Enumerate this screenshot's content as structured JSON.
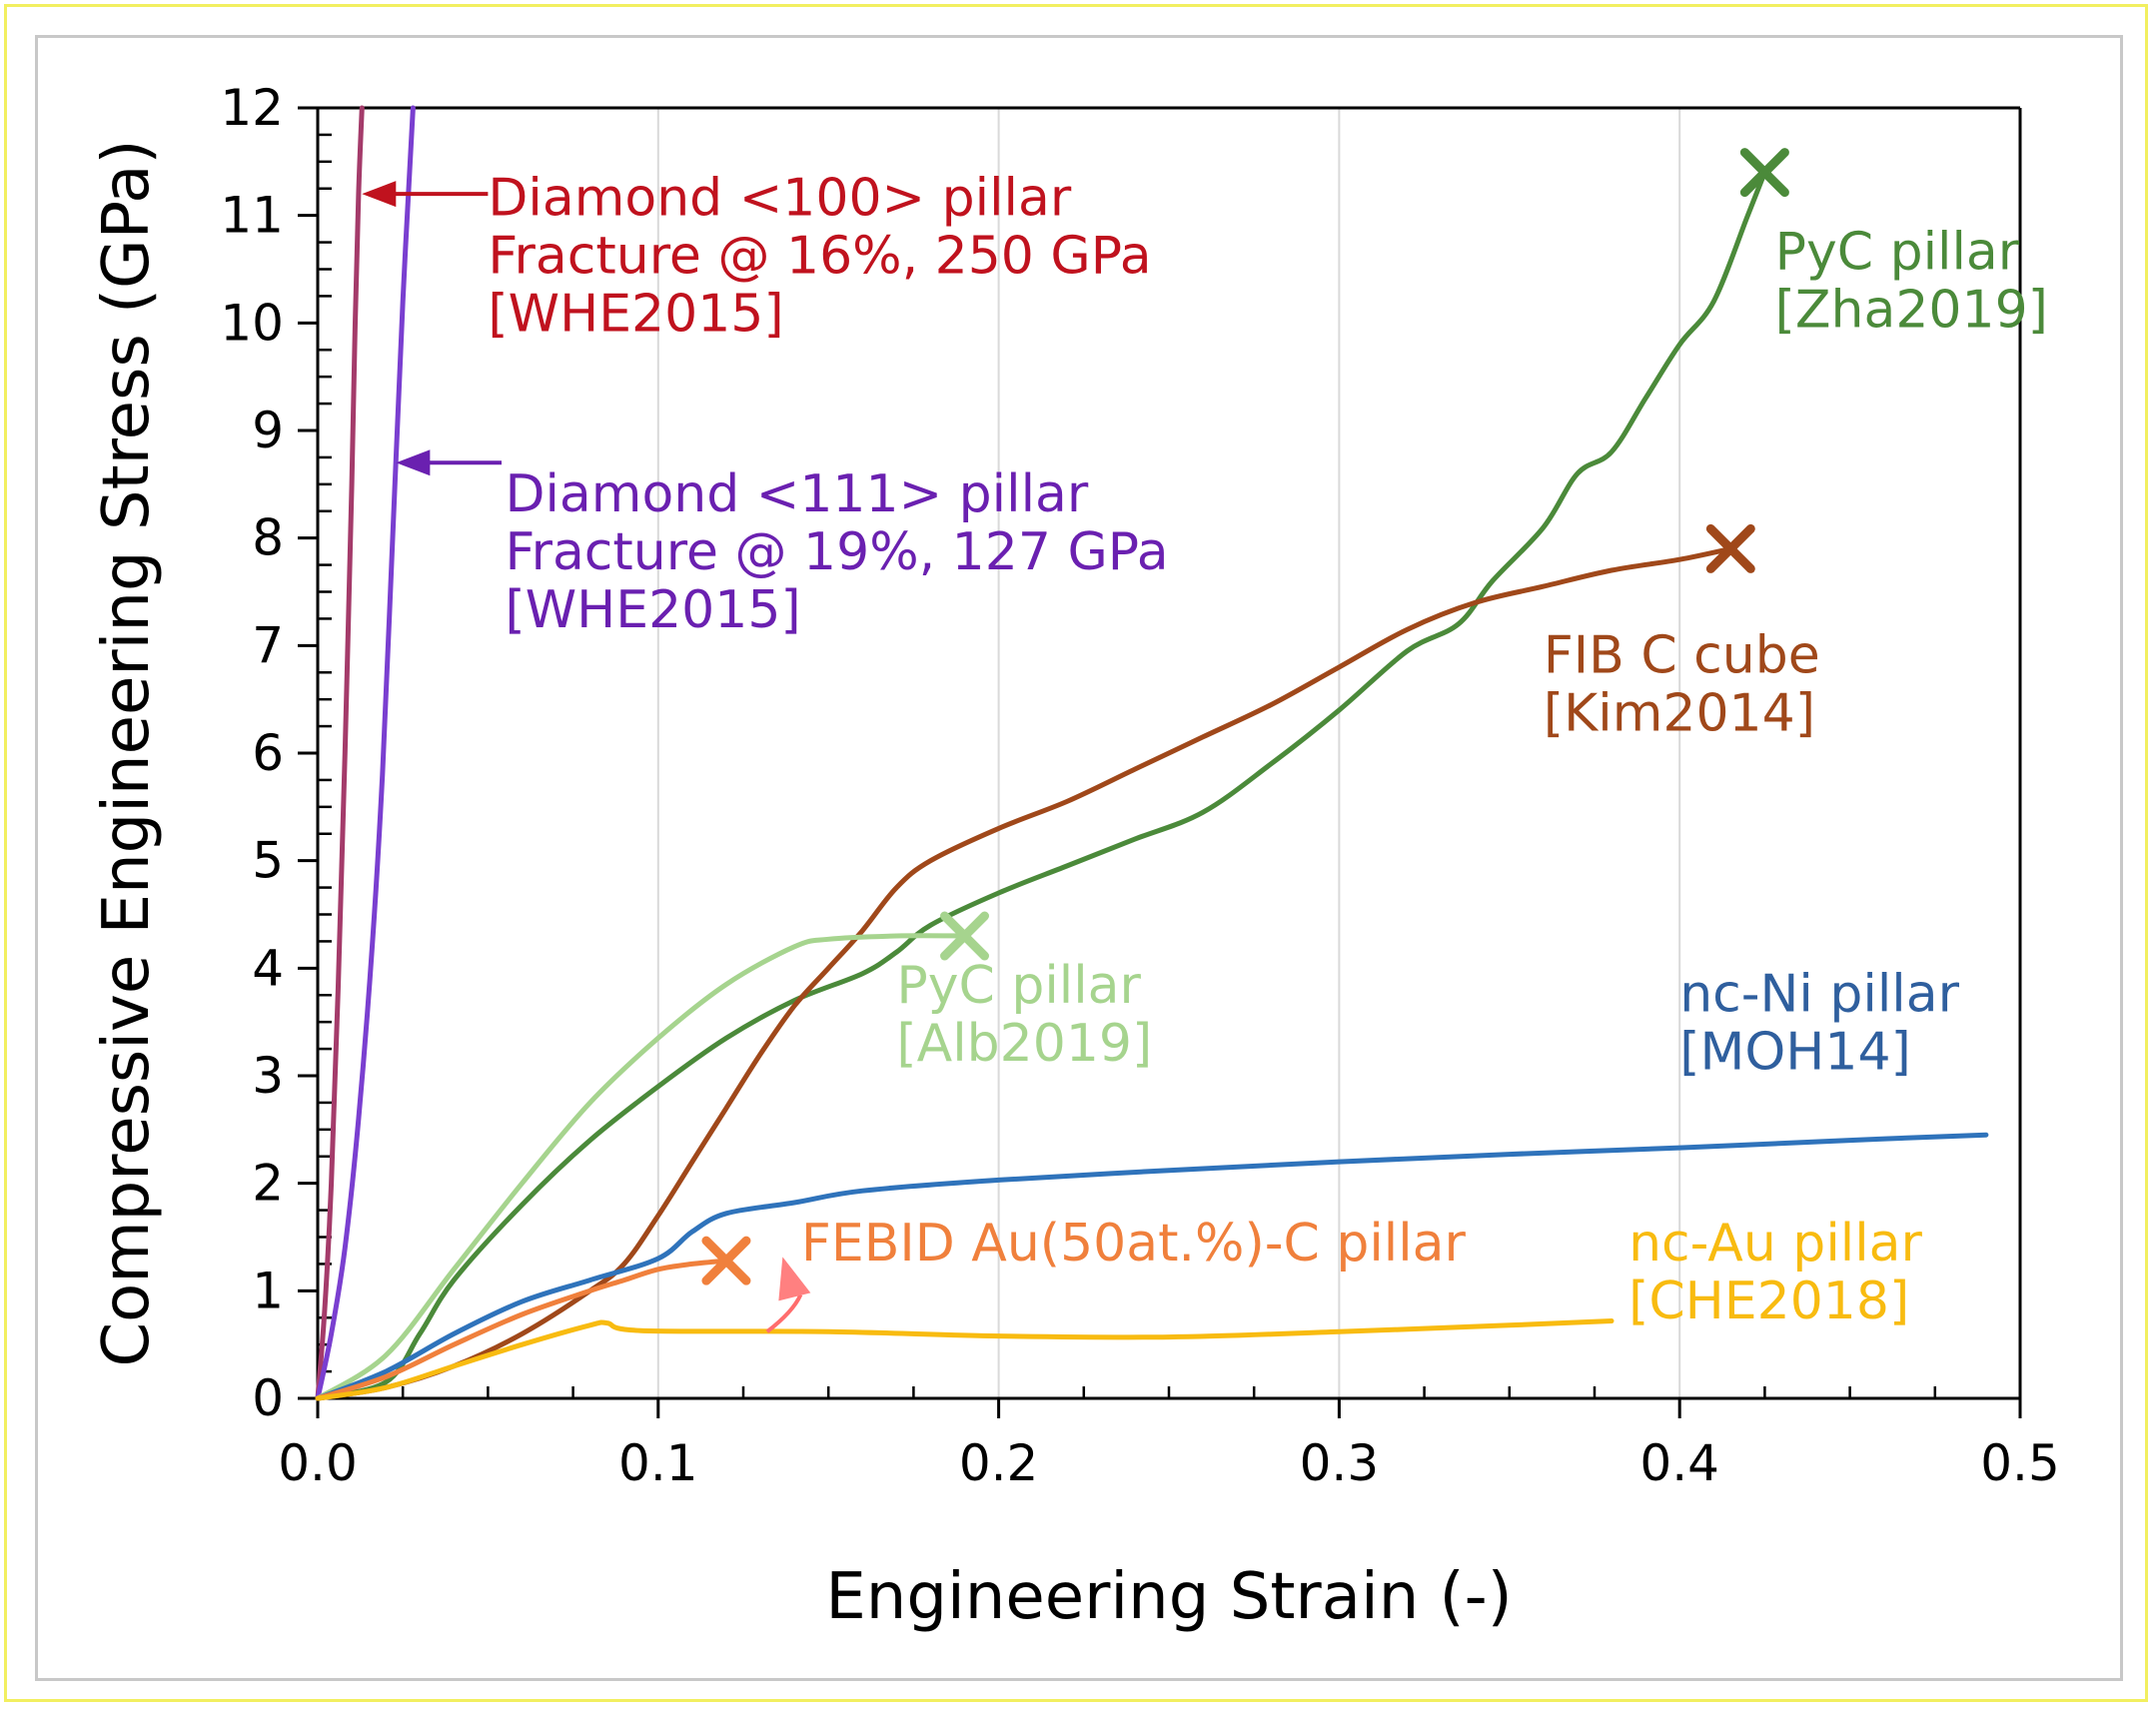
{
  "chart_data": {
    "type": "line",
    "title": "",
    "xlabel": "Engineering Strain (-)",
    "ylabel": "Compressive Engineering Stress (GPa)",
    "xlim": [
      0,
      0.5
    ],
    "ylim": [
      0,
      12
    ],
    "xticks": [
      0.0,
      0.1,
      0.2,
      0.3,
      0.4,
      0.5
    ],
    "xtick_labels": [
      "0.0",
      "0.1",
      "0.2",
      "0.3",
      "0.4",
      "0.5"
    ],
    "yticks": [
      0,
      1,
      2,
      3,
      4,
      5,
      6,
      7,
      8,
      9,
      10,
      11,
      12
    ],
    "ytick_labels": [
      "0",
      "1",
      "2",
      "3",
      "4",
      "5",
      "6",
      "7",
      "8",
      "9",
      "10",
      "11",
      "12"
    ],
    "grid": "vertical",
    "series": [
      {
        "name": "Diamond <100> pillar",
        "color": "#a43b6a",
        "points": [
          [
            0,
            0
          ],
          [
            0.002,
            0.8
          ],
          [
            0.004,
            2
          ],
          [
            0.006,
            3.8
          ],
          [
            0.008,
            6
          ],
          [
            0.01,
            8.5
          ],
          [
            0.011,
            10
          ],
          [
            0.012,
            11.2
          ],
          [
            0.013,
            12
          ]
        ]
      },
      {
        "name": "Diamond <111> pillar",
        "color": "#7a3fd0",
        "points": [
          [
            0,
            0
          ],
          [
            0.004,
            0.6
          ],
          [
            0.008,
            1.4
          ],
          [
            0.012,
            2.6
          ],
          [
            0.016,
            4.2
          ],
          [
            0.019,
            5.8
          ],
          [
            0.022,
            8
          ],
          [
            0.025,
            10.2
          ],
          [
            0.028,
            12
          ]
        ]
      },
      {
        "name": "PyC pillar [Zha2019]",
        "color": "#4b8a3a",
        "points": [
          [
            0,
            0
          ],
          [
            0.02,
            0.15
          ],
          [
            0.03,
            0.6
          ],
          [
            0.04,
            1.1
          ],
          [
            0.06,
            1.8
          ],
          [
            0.08,
            2.4
          ],
          [
            0.1,
            2.9
          ],
          [
            0.12,
            3.35
          ],
          [
            0.14,
            3.7
          ],
          [
            0.16,
            3.95
          ],
          [
            0.17,
            4.15
          ],
          [
            0.18,
            4.4
          ],
          [
            0.2,
            4.7
          ],
          [
            0.22,
            4.95
          ],
          [
            0.24,
            5.2
          ],
          [
            0.26,
            5.45
          ],
          [
            0.28,
            5.9
          ],
          [
            0.3,
            6.4
          ],
          [
            0.32,
            6.95
          ],
          [
            0.335,
            7.2
          ],
          [
            0.345,
            7.6
          ],
          [
            0.36,
            8.1
          ],
          [
            0.37,
            8.6
          ],
          [
            0.38,
            8.8
          ],
          [
            0.39,
            9.3
          ],
          [
            0.4,
            9.8
          ],
          [
            0.41,
            10.2
          ],
          [
            0.42,
            11.0
          ],
          [
            0.425,
            11.4
          ]
        ]
      },
      {
        "name": "FIB C cube [Kim2014]",
        "color": "#a0481a",
        "points": [
          [
            0,
            0
          ],
          [
            0.02,
            0.1
          ],
          [
            0.04,
            0.3
          ],
          [
            0.06,
            0.6
          ],
          [
            0.08,
            1.0
          ],
          [
            0.09,
            1.25
          ],
          [
            0.1,
            1.7
          ],
          [
            0.11,
            2.2
          ],
          [
            0.12,
            2.7
          ],
          [
            0.13,
            3.2
          ],
          [
            0.14,
            3.65
          ],
          [
            0.15,
            4.0
          ],
          [
            0.16,
            4.35
          ],
          [
            0.17,
            4.75
          ],
          [
            0.18,
            5.0
          ],
          [
            0.2,
            5.3
          ],
          [
            0.22,
            5.55
          ],
          [
            0.24,
            5.85
          ],
          [
            0.26,
            6.15
          ],
          [
            0.28,
            6.45
          ],
          [
            0.3,
            6.8
          ],
          [
            0.32,
            7.15
          ],
          [
            0.34,
            7.4
          ],
          [
            0.36,
            7.55
          ],
          [
            0.38,
            7.7
          ],
          [
            0.4,
            7.8
          ],
          [
            0.415,
            7.9
          ]
        ]
      },
      {
        "name": "PyC pillar [Alb2019]",
        "color": "#a6d48e",
        "points": [
          [
            0,
            0
          ],
          [
            0.02,
            0.4
          ],
          [
            0.04,
            1.2
          ],
          [
            0.06,
            2.0
          ],
          [
            0.08,
            2.75
          ],
          [
            0.1,
            3.35
          ],
          [
            0.12,
            3.85
          ],
          [
            0.14,
            4.2
          ],
          [
            0.15,
            4.27
          ],
          [
            0.17,
            4.3
          ],
          [
            0.19,
            4.3
          ]
        ]
      },
      {
        "name": "nc-Ni pillar [MOH14]",
        "color": "#2f73bb",
        "points": [
          [
            0,
            0
          ],
          [
            0.02,
            0.25
          ],
          [
            0.04,
            0.6
          ],
          [
            0.06,
            0.9
          ],
          [
            0.08,
            1.1
          ],
          [
            0.1,
            1.3
          ],
          [
            0.11,
            1.55
          ],
          [
            0.12,
            1.72
          ],
          [
            0.14,
            1.82
          ],
          [
            0.16,
            1.93
          ],
          [
            0.2,
            2.03
          ],
          [
            0.25,
            2.12
          ],
          [
            0.3,
            2.2
          ],
          [
            0.35,
            2.27
          ],
          [
            0.4,
            2.33
          ],
          [
            0.45,
            2.4
          ],
          [
            0.49,
            2.45
          ]
        ]
      },
      {
        "name": "FEBID Au(50at.%)-C pillar",
        "color": "#f0803c",
        "points": [
          [
            0,
            0
          ],
          [
            0.02,
            0.2
          ],
          [
            0.04,
            0.5
          ],
          [
            0.06,
            0.78
          ],
          [
            0.08,
            1.0
          ],
          [
            0.09,
            1.1
          ],
          [
            0.1,
            1.2
          ],
          [
            0.11,
            1.25
          ],
          [
            0.12,
            1.28
          ]
        ]
      },
      {
        "name": "nc-Au pillar [CHE2018]",
        "color": "#f8bb10",
        "points": [
          [
            0,
            0
          ],
          [
            0.02,
            0.1
          ],
          [
            0.04,
            0.3
          ],
          [
            0.06,
            0.5
          ],
          [
            0.08,
            0.68
          ],
          [
            0.085,
            0.7
          ],
          [
            0.095,
            0.63
          ],
          [
            0.15,
            0.62
          ],
          [
            0.2,
            0.58
          ],
          [
            0.25,
            0.57
          ],
          [
            0.3,
            0.62
          ],
          [
            0.35,
            0.68
          ],
          [
            0.38,
            0.72
          ]
        ]
      }
    ],
    "fracture_markers": [
      {
        "series": "PyC pillar [Zha2019]",
        "x": 0.425,
        "y": 11.4,
        "color": "#4b8a3a"
      },
      {
        "series": "FIB C cube [Kim2014]",
        "x": 0.415,
        "y": 7.9,
        "color": "#a0481a"
      },
      {
        "series": "PyC pillar [Alb2019]",
        "x": 0.19,
        "y": 4.3,
        "color": "#a6d48e"
      },
      {
        "series": "FEBID Au(50at.%)-C pillar",
        "x": 0.12,
        "y": 1.28,
        "color": "#f0803c"
      }
    ],
    "annotations": [
      {
        "lines": [
          "Diamond <100> pillar",
          "Fracture @ 16%, 250 GPa",
          "[WHE2015]"
        ],
        "color": "#c0121e",
        "x": 0.05,
        "y": 11.0
      },
      {
        "lines": [
          "Diamond  <111> pillar",
          "Fracture @ 19%, 127 GPa",
          "[WHE2015]"
        ],
        "color": "#6a20b0",
        "x": 0.055,
        "y": 8.25
      },
      {
        "lines": [
          "PyC pillar",
          "[Zha2019]"
        ],
        "color": "#4b8a3a",
        "x": 0.428,
        "y": 10.5
      },
      {
        "lines": [
          "FIB C cube",
          "[Kim2014]"
        ],
        "color": "#a0481a",
        "x": 0.36,
        "y": 6.75
      },
      {
        "lines": [
          "PyC pillar",
          "[Alb2019]"
        ],
        "color": "#a6d48e",
        "x": 0.17,
        "y": 3.68
      },
      {
        "lines": [
          "nc-Ni pillar",
          "[MOH14]"
        ],
        "color": "#2f5f9e",
        "x": 0.4,
        "y": 3.6
      },
      {
        "lines": [
          "FEBID Au(50at.%)-C pillar"
        ],
        "color": "#f0803c",
        "x": 0.142,
        "y": 1.28
      },
      {
        "lines": [
          "nc-Au pillar",
          "[CHE2018]"
        ],
        "color": "#f8bb10",
        "x": 0.385,
        "y": 1.28
      }
    ],
    "arrows": [
      {
        "color": "#c0121e",
        "from": [
          0.05,
          11.2
        ],
        "to": [
          0.013,
          11.2
        ]
      },
      {
        "color": "#6a20b0",
        "from": [
          0.054,
          8.7
        ],
        "to": [
          0.023,
          8.7
        ]
      }
    ]
  }
}
